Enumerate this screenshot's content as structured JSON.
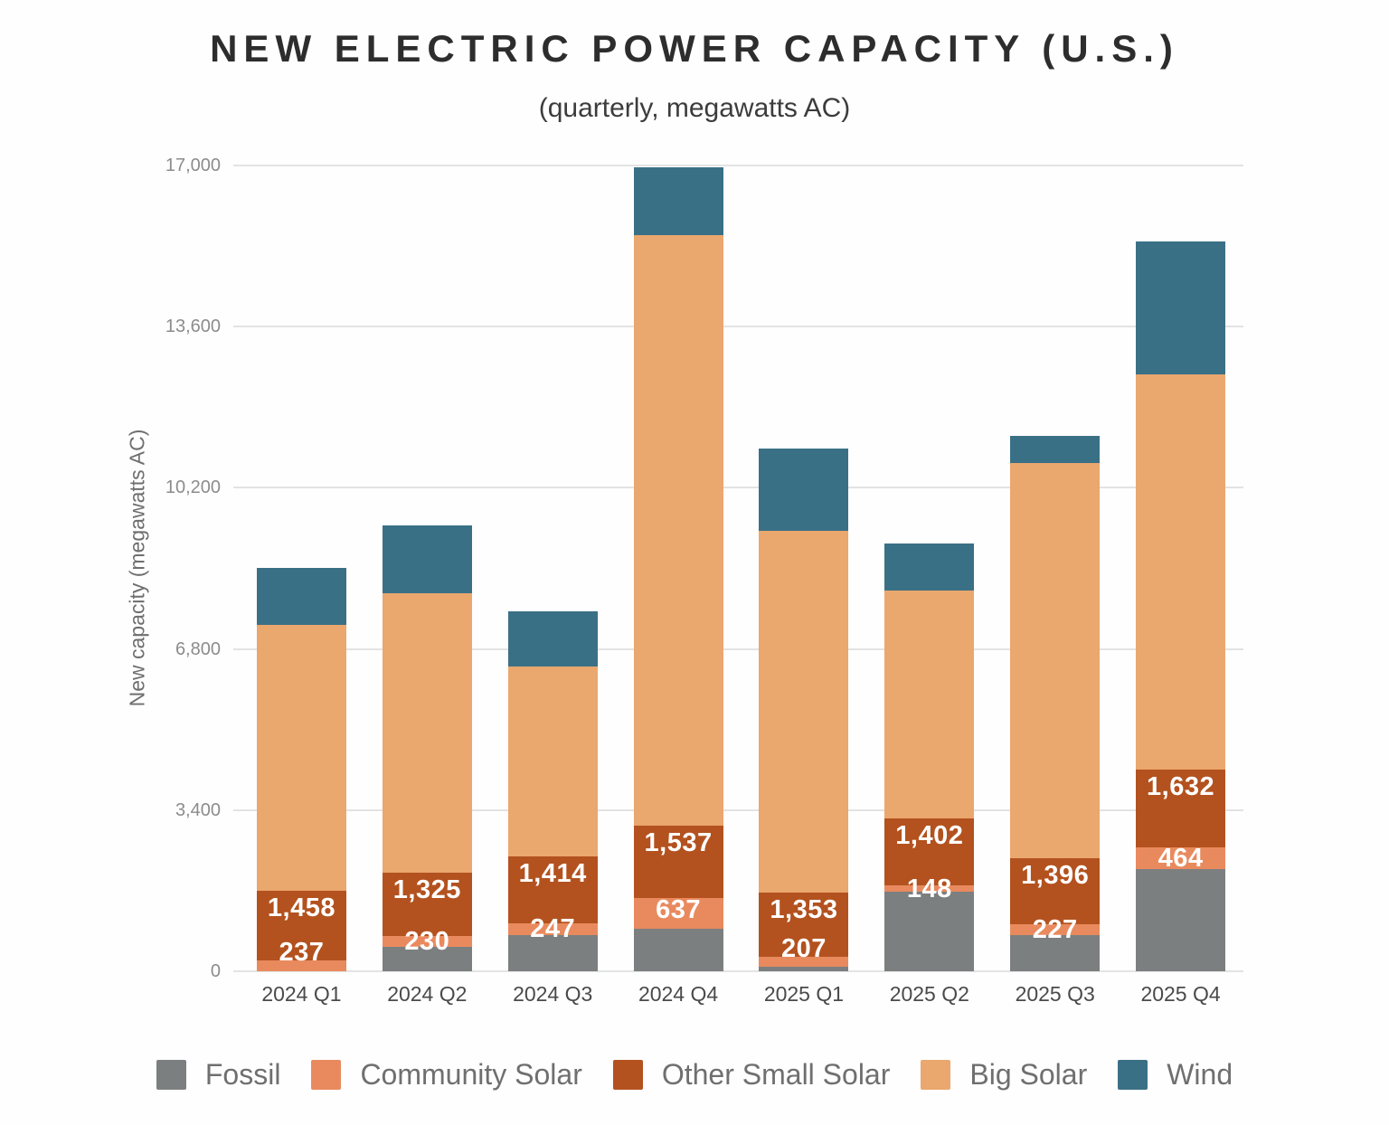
{
  "chart_data": {
    "type": "bar",
    "stacked": true,
    "title": "NEW ELECTRIC POWER CAPACITY (U.S.)",
    "subtitle": "(quarterly, megawatts AC)",
    "xlabel": "",
    "ylabel": "New capacity (megawatts AC)",
    "ylim": [
      0,
      17000
    ],
    "yticks": [
      0,
      3400,
      6800,
      10200,
      13600,
      17000
    ],
    "ytick_labels": [
      "0",
      "3,400",
      "6,800",
      "10,200",
      "13,600",
      "17,000"
    ],
    "grid": "horizontal",
    "legend_position": "bottom",
    "categories": [
      "2024 Q1",
      "2024 Q2",
      "2024 Q3",
      "2024 Q4",
      "2025 Q1",
      "2025 Q2",
      "2025 Q3",
      "2025 Q4"
    ],
    "series": [
      {
        "name": "Fossil",
        "color": "#7c7f80",
        "values": [
          0,
          520,
          770,
          900,
          100,
          1670,
          770,
          2150
        ],
        "labels": [
          "",
          "",
          "",
          "",
          "",
          "",
          "",
          ""
        ]
      },
      {
        "name": "Community Solar",
        "color": "#e98a5e",
        "values": [
          237,
          230,
          247,
          637,
          207,
          148,
          227,
          464
        ],
        "labels": [
          "237",
          "230",
          "247",
          "637",
          "207",
          "148",
          "227",
          "464"
        ]
      },
      {
        "name": "Other Small Solar",
        "color": "#b3521f",
        "values": [
          1458,
          1325,
          1414,
          1537,
          1353,
          1402,
          1396,
          1632
        ],
        "labels": [
          "1,458",
          "1,325",
          "1,414",
          "1,537",
          "1,353",
          "1,402",
          "1,396",
          "1,632"
        ]
      },
      {
        "name": "Big Solar",
        "color": "#eaa76e",
        "values": [
          5620,
          5905,
          3990,
          12450,
          7625,
          4820,
          8330,
          8340
        ],
        "labels": [
          "",
          "",
          "",
          "",
          "",
          "",
          "",
          ""
        ]
      },
      {
        "name": "Wind",
        "color": "#3a7086",
        "values": [
          1190,
          1430,
          1180,
          1435,
          1740,
          990,
          570,
          2820
        ],
        "labels": [
          "",
          "",
          "",
          "",
          "",
          "",
          "",
          ""
        ]
      }
    ]
  }
}
